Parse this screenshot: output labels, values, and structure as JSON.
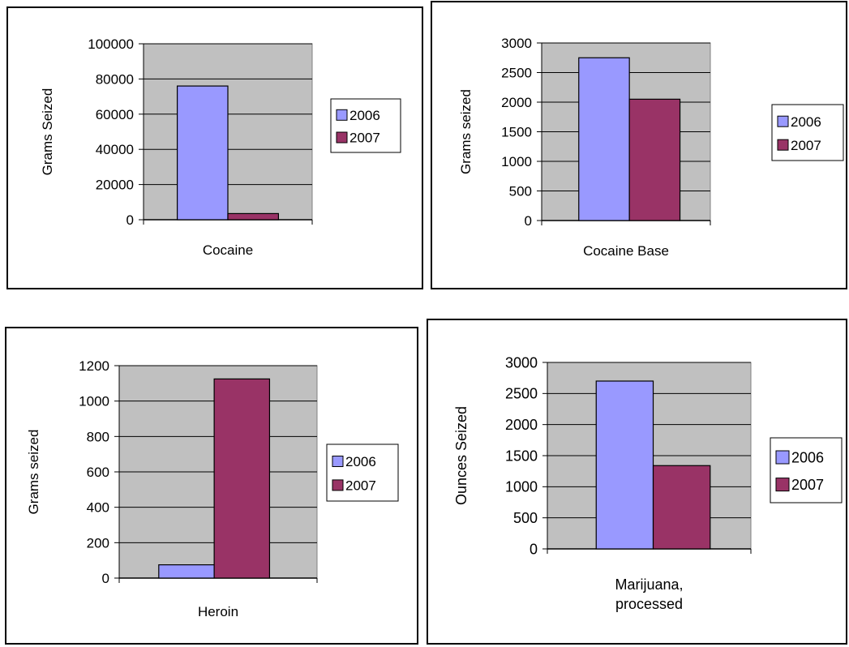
{
  "colors": {
    "plot_area": "#c0c0c0",
    "gridline": "#000000",
    "series_2006": "#9999ff",
    "series_2007": "#993366",
    "border": "#000000",
    "background": "#ffffff"
  },
  "chart_data": [
    {
      "type": "bar",
      "categories": [
        "Cocaine"
      ],
      "ylabel": "Grams Seized",
      "xlabel": "",
      "ylim": [
        0,
        100000
      ],
      "ytick_step": 20000,
      "legend_position": "right",
      "series": [
        {
          "name": "2006",
          "values": [
            76000
          ]
        },
        {
          "name": "2007",
          "values": [
            3500
          ]
        }
      ]
    },
    {
      "type": "bar",
      "categories": [
        "Cocaine Base"
      ],
      "ylabel": "Grams seized",
      "xlabel": "",
      "ylim": [
        0,
        3000
      ],
      "ytick_step": 500,
      "legend_position": "right",
      "series": [
        {
          "name": "2006",
          "values": [
            2750
          ]
        },
        {
          "name": "2007",
          "values": [
            2050
          ]
        }
      ]
    },
    {
      "type": "bar",
      "categories": [
        "Heroin"
      ],
      "ylabel": "Grams seized",
      "xlabel": "",
      "ylim": [
        0,
        1200
      ],
      "ytick_step": 200,
      "legend_position": "right",
      "series": [
        {
          "name": "2006",
          "values": [
            75
          ]
        },
        {
          "name": "2007",
          "values": [
            1125
          ]
        }
      ]
    },
    {
      "type": "bar",
      "categories": [
        "Marijuana, processed"
      ],
      "category_lines": [
        [
          "Marijuana,",
          "processed"
        ]
      ],
      "ylabel": "Ounces Seized",
      "xlabel": "",
      "ylim": [
        0,
        3000
      ],
      "ytick_step": 500,
      "legend_position": "right",
      "series": [
        {
          "name": "2006",
          "values": [
            2700
          ]
        },
        {
          "name": "2007",
          "values": [
            1340
          ]
        }
      ]
    }
  ]
}
